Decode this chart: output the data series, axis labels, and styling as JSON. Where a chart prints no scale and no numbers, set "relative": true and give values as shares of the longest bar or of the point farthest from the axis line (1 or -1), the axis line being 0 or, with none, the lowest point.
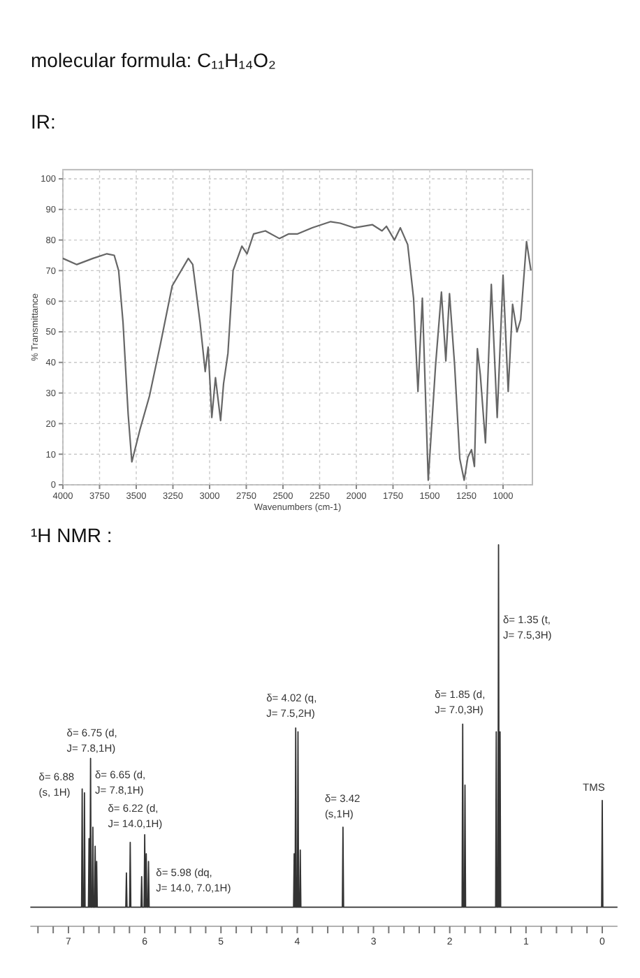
{
  "chart_data": [
    {
      "type": "line",
      "title": "molecular formula: C₁₁H₁₄O₂",
      "subtitle": "IR:",
      "xlabel": "Wavenumbers (cm-1)",
      "ylabel": "% Transmittance",
      "xlim": [
        4000,
        800
      ],
      "xticks": [
        4000,
        3750,
        3500,
        3250,
        3000,
        2750,
        2500,
        2250,
        2000,
        1750,
        1500,
        1250,
        1000
      ],
      "ylim": [
        0,
        103
      ],
      "yticks": [
        0,
        10,
        20,
        30,
        40,
        50,
        60,
        70,
        80,
        90,
        100
      ],
      "grid": true,
      "series": [
        {
          "color": "#666666",
          "x": [
            4000,
            3905,
            3795,
            3700,
            3650,
            3620,
            3590,
            3555,
            3530,
            3475,
            3410,
            3335,
            3255,
            3145,
            3115,
            3065,
            3030,
            3010,
            2985,
            2960,
            2925,
            2905,
            2875,
            2840,
            2780,
            2745,
            2700,
            2620,
            2525,
            2460,
            2400,
            2300,
            2175,
            2110,
            2015,
            1890,
            1825,
            1795,
            1740,
            1700,
            1650,
            1610,
            1580,
            1550,
            1510,
            1460,
            1420,
            1390,
            1365,
            1330,
            1295,
            1265,
            1240,
            1215,
            1195,
            1175,
            1155,
            1120,
            1080,
            1040,
            1000,
            965,
            935,
            905,
            880,
            840,
            810
          ],
          "values": [
            74,
            72,
            74,
            75.5,
            75,
            70,
            53,
            23,
            7.5,
            18,
            29,
            46,
            65,
            74,
            72,
            53,
            37,
            45,
            22,
            35,
            21,
            33,
            43,
            70,
            78,
            75.5,
            82,
            83,
            80.5,
            82,
            82,
            84,
            86,
            85.5,
            84,
            85,
            83,
            84.5,
            80,
            84,
            78.5,
            61,
            30.5,
            61,
            1.5,
            39,
            63,
            40.5,
            62.5,
            39,
            8.5,
            1.5,
            9,
            11.5,
            6,
            44.5,
            36,
            13.7,
            65.5,
            22,
            68.5,
            30.5,
            59,
            50,
            54,
            79.5,
            70
          ]
        }
      ]
    },
    {
      "type": "line",
      "title": "¹H NMR :",
      "xlim": [
        7.5,
        -0.2
      ],
      "relative": true,
      "tick_labels": "x",
      "xticks": [
        {
          "value": 7.4,
          "label": null
        },
        {
          "value": 7.2,
          "label": null
        },
        7,
        {
          "value": 6.8,
          "label": null
        },
        {
          "value": 6.6,
          "label": null
        },
        {
          "value": 6.4,
          "label": null
        },
        {
          "value": 6.2,
          "label": null
        },
        6,
        {
          "value": 5.8,
          "label": null
        },
        {
          "value": 5.6,
          "label": null
        },
        {
          "value": 5.4,
          "label": null
        },
        {
          "value": 5.2,
          "label": null
        },
        5,
        {
          "value": 4.8,
          "label": null
        },
        {
          "value": 4.6,
          "label": null
        },
        {
          "value": 4.4,
          "label": null
        },
        {
          "value": 4.2,
          "label": null
        },
        4,
        {
          "value": 3.8,
          "label": null
        },
        {
          "value": 3.6,
          "label": null
        },
        {
          "value": 3.4,
          "label": null
        },
        {
          "value": 3.2,
          "label": null
        },
        3,
        {
          "value": 2.8,
          "label": null
        },
        {
          "value": 2.6,
          "label": null
        },
        {
          "value": 2.4,
          "label": null
        },
        {
          "value": 2.2,
          "label": null
        },
        2,
        {
          "value": 1.8,
          "label": null
        },
        {
          "value": 1.6,
          "label": null
        },
        {
          "value": 1.4,
          "label": null
        },
        {
          "value": 1.2,
          "label": null
        },
        1,
        {
          "value": 0.8,
          "label": null
        },
        {
          "value": 0.6,
          "label": null
        },
        {
          "value": 0.4,
          "label": null
        },
        {
          "value": 0.2,
          "label": null
        },
        0
      ],
      "series": [
        {
          "color": "#333333",
          "x": [
            7.5,
            6.828,
            6.82,
            6.812,
            6.798,
            6.79,
            6.782,
            6.738,
            6.73,
            6.722,
            6.718,
            6.71,
            6.702,
            6.688,
            6.68,
            6.672,
            6.658,
            6.65,
            6.642,
            6.638,
            6.63,
            6.622,
            6.248,
            6.24,
            6.232,
            6.198,
            6.19,
            6.182,
            6.048,
            6.04,
            6.032,
            6.008,
            6.0,
            5.992,
            5.988,
            5.98,
            5.972,
            5.958,
            5.95,
            5.942,
            4.048,
            4.04,
            4.032,
            4.028,
            4.02,
            4.012,
            3.998,
            3.99,
            3.982,
            3.968,
            3.96,
            3.952,
            3.408,
            3.4,
            3.392,
            1.838,
            1.83,
            1.822,
            1.808,
            1.8,
            1.792,
            1.398,
            1.39,
            1.382,
            1.368,
            1.36,
            1.352,
            1.348,
            1.34,
            1.332,
            0.008,
            0,
            -0.008,
            -0.2
          ],
          "values": [
            0.05,
            0.05,
            0.36,
            0.05,
            0.05,
            0.35,
            0.05,
            0.05,
            0.23,
            0.05,
            0.05,
            0.44,
            0.05,
            0.05,
            0.26,
            0.05,
            0.05,
            0.21,
            0.05,
            0.05,
            0.17,
            0.05,
            0.05,
            0.14,
            0.05,
            0.05,
            0.22,
            0.05,
            0.05,
            0.13,
            0.05,
            0.05,
            0.24,
            0.05,
            0.05,
            0.19,
            0.05,
            0.05,
            0.17,
            0.05,
            0.05,
            0.19,
            0.05,
            0.05,
            0.52,
            0.05,
            0.05,
            0.51,
            0.05,
            0.05,
            0.2,
            0.05,
            0.05,
            0.26,
            0.05,
            0.05,
            0.53,
            0.05,
            0.05,
            0.37,
            0.05,
            0.05,
            0.51,
            0.05,
            0.05,
            1,
            0.05,
            0.05,
            0.51,
            0.05,
            0.05,
            0.33,
            0.05,
            0.05
          ]
        }
      ],
      "annotations": [
        {
          "text": "δ= 6.88\n(s, 1H)",
          "x": 6.82,
          "y": 0.36
        },
        {
          "text": "δ= 6.75 (d,\nJ= 7.8,1H)",
          "x": 6.71,
          "y": 0.44
        },
        "δ= 6.65 (d,\nJ= 7.8,1H)",
        {
          "text": "δ= 6.22 (d,\nJ= 14.0,1H)",
          "x": 6.19,
          "y": 0.22
        },
        {
          "text": "δ= 5.98 (dq,\nJ= 14.0, 7.0,1H)",
          "x": 5.98,
          "y": 0.19
        },
        {
          "text": "δ= 4.02 (q,\nJ= 7.5,2H)",
          "x": 4.02,
          "y": 0.52
        },
        {
          "text": "δ= 3.42\n(s,1H)",
          "x": 3.4,
          "y": 0.26
        },
        {
          "text": "δ= 1.85 (d,\nJ= 7.0,3H)",
          "x": 1.83,
          "y": 0.53
        },
        "δ= 1.35 (t,\nJ= 7.5,3H)",
        {
          "text": "TMS",
          "x": 0,
          "y": 0.33
        }
      ]
    }
  ]
}
